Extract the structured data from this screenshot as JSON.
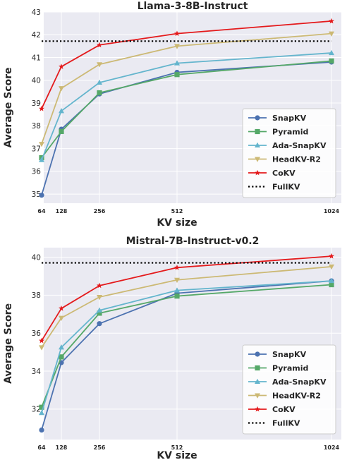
{
  "chart_data": [
    {
      "type": "line",
      "title": "Llama-3-8B-Instruct",
      "xlabel": "KV size",
      "ylabel": "Average Score",
      "x": [
        64,
        128,
        256,
        512,
        1024
      ],
      "xticks": [
        "64",
        "128",
        "256",
        "512",
        "1024"
      ],
      "ylim": [
        34.6,
        43.0
      ],
      "yticks": [
        35,
        36,
        37,
        38,
        39,
        40,
        41,
        42,
        43
      ],
      "grid": true,
      "legend": "lower-right",
      "series": [
        {
          "name": "SnapKV",
          "color": "#4c72b0",
          "marker": "circle",
          "values": [
            34.95,
            37.85,
            39.4,
            40.35,
            40.8
          ]
        },
        {
          "name": "Pyramid",
          "color": "#55a868",
          "marker": "square",
          "values": [
            36.6,
            37.75,
            39.45,
            40.25,
            40.85
          ]
        },
        {
          "name": "Ada-SnapKV",
          "color": "#64b5cd",
          "marker": "triangle-up",
          "values": [
            36.5,
            38.65,
            39.9,
            40.75,
            41.2
          ]
        },
        {
          "name": "HeadKV-R2",
          "color": "#ccb974",
          "marker": "triangle-down",
          "values": [
            37.2,
            39.65,
            40.7,
            41.5,
            42.05
          ]
        },
        {
          "name": "CoKV",
          "color": "#e41a1c",
          "marker": "star",
          "values": [
            38.75,
            40.6,
            41.55,
            42.05,
            42.6
          ]
        },
        {
          "name": "FullKV",
          "color": "#000000",
          "marker": "none",
          "dashed": true,
          "values": [
            41.72,
            41.72,
            41.72,
            41.72,
            41.72
          ]
        }
      ]
    },
    {
      "type": "line",
      "title": "Mistral-7B-Instruct-v0.2",
      "xlabel": "KV size",
      "ylabel": "Average Score",
      "x": [
        64,
        128,
        256,
        512,
        1024
      ],
      "xticks": [
        "64",
        "128",
        "256",
        "512",
        "1024"
      ],
      "ylim": [
        30.4,
        40.5
      ],
      "yticks": [
        32,
        34,
        36,
        38,
        40
      ],
      "grid": true,
      "legend": "lower-right",
      "series": [
        {
          "name": "SnapKV",
          "color": "#4c72b0",
          "marker": "circle",
          "values": [
            30.9,
            34.45,
            36.5,
            38.1,
            38.75
          ]
        },
        {
          "name": "Pyramid",
          "color": "#55a868",
          "marker": "square",
          "values": [
            32.1,
            34.75,
            37.05,
            37.95,
            38.55
          ]
        },
        {
          "name": "Ada-SnapKV",
          "color": "#64b5cd",
          "marker": "triangle-up",
          "values": [
            31.8,
            35.25,
            37.2,
            38.25,
            38.75
          ]
        },
        {
          "name": "HeadKV-R2",
          "color": "#ccb974",
          "marker": "triangle-down",
          "values": [
            35.25,
            36.8,
            37.9,
            38.8,
            39.5
          ]
        },
        {
          "name": "CoKV",
          "color": "#e41a1c",
          "marker": "star",
          "values": [
            35.6,
            37.3,
            38.5,
            39.45,
            40.05
          ]
        },
        {
          "name": "FullKV",
          "color": "#000000",
          "marker": "none",
          "dashed": true,
          "values": [
            39.7,
            39.7,
            39.7,
            39.7,
            39.7
          ]
        }
      ]
    }
  ]
}
